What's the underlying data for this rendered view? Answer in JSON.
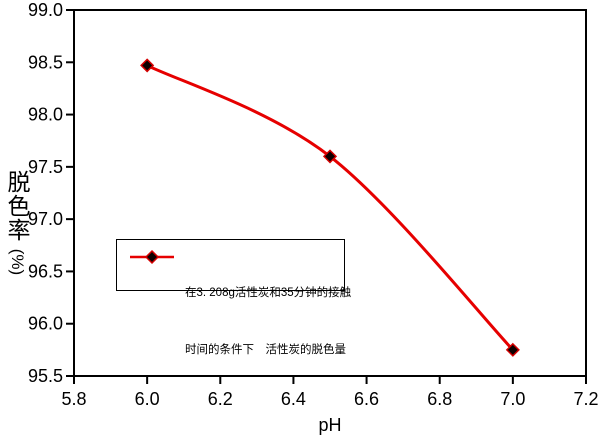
{
  "chart_data": {
    "type": "line",
    "smooth": true,
    "title": "",
    "xlabel": "pH",
    "ylabel": "脱色率",
    "ylabel_unit": "(%)",
    "x": [
      6.0,
      6.5,
      7.0
    ],
    "y": [
      98.47,
      97.6,
      95.75
    ],
    "xlim": [
      5.8,
      7.2
    ],
    "ylim": [
      95.5,
      99.0
    ],
    "x_tick_labels": [
      "5.8",
      "6.0",
      "6.2",
      "6.4",
      "6.6",
      "6.8",
      "7.0",
      "7.2"
    ],
    "y_tick_labels": [
      "99.0",
      "98.5",
      "98.0",
      "97.5",
      "97.0",
      "96.5",
      "96.0",
      "95.5"
    ],
    "grid": false,
    "legend_position": "inside lower-left",
    "axis_color": "#000000",
    "background": "#ffffff",
    "series": [
      {
        "name": "在3. 208g活性炭和35分钟的接触时间的条件下　活性炭的脱色量",
        "marker": "diamond",
        "line_color": "#e60000",
        "marker_fill": "#0d0000",
        "marker_stroke": "#d40000"
      }
    ]
  },
  "legend": {
    "lines": [
      "在3. 208g活性炭和35分钟的接触",
      "时间的条件下　活性炭的脱色量"
    ]
  }
}
